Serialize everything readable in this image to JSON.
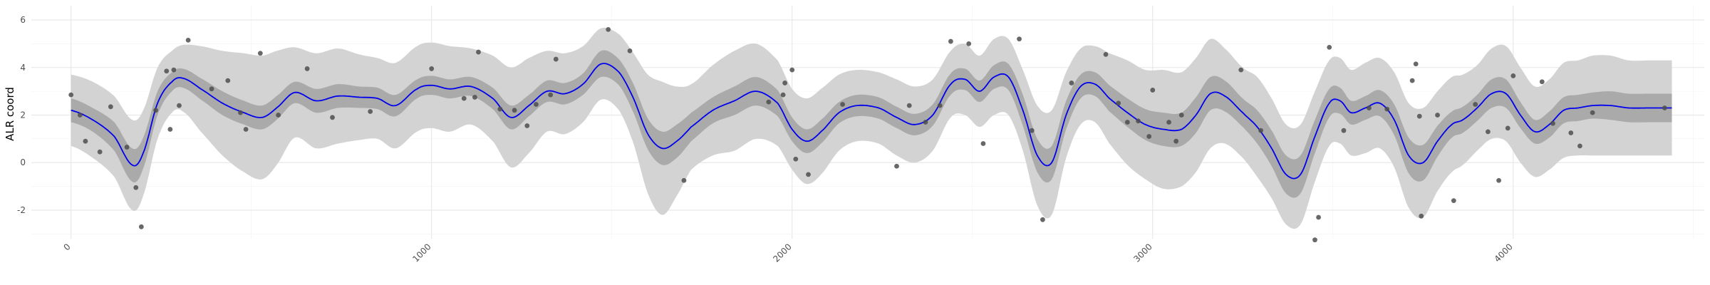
{
  "chart_data": {
    "type": "line",
    "title": "",
    "xlabel": "",
    "ylabel": "ALR coord",
    "xlim": [
      -110,
      4530
    ],
    "ylim": [
      -3.2,
      6.6
    ],
    "x_ticks": [
      0,
      1000,
      2000,
      3000,
      4000
    ],
    "x_tick_labels": [
      "0",
      "1000",
      "2000",
      "3000",
      "4000"
    ],
    "y_ticks": [
      -2,
      0,
      2,
      4,
      6
    ],
    "y_tick_labels": [
      "-2",
      "0",
      "2",
      "4",
      "6"
    ],
    "grid": true,
    "legend": "none",
    "colors": {
      "mean_line": "#0000ee",
      "inner_band": "#aaaaaa",
      "outer_band": "#d3d3d3",
      "points": "#4d4d4d",
      "grid_major": "#e6e6e6",
      "grid_minor": "#f2f2f2"
    },
    "mean_curve": {
      "x": [
        0,
        60,
        120,
        170,
        200,
        240,
        280,
        310,
        360,
        420,
        480,
        530,
        570,
        620,
        680,
        740,
        800,
        850,
        900,
        960,
        1000,
        1050,
        1110,
        1170,
        1220,
        1270,
        1320,
        1370,
        1420,
        1470,
        1520,
        1560,
        1600,
        1640,
        1680,
        1720,
        1780,
        1840,
        1900,
        1960,
        2000,
        2040,
        2080,
        2130,
        2180,
        2240,
        2290,
        2340,
        2390,
        2440,
        2480,
        2520,
        2560,
        2600,
        2640,
        2680,
        2720,
        2760,
        2800,
        2840,
        2880,
        2930,
        2980,
        3030,
        3080,
        3120,
        3160,
        3200,
        3250,
        3290,
        3330,
        3370,
        3410,
        3450,
        3490,
        3520,
        3550,
        3590,
        3630,
        3670,
        3710,
        3750,
        3790,
        3830,
        3860,
        3900,
        3940,
        3980,
        4020,
        4060,
        4100,
        4140,
        4180,
        4220,
        4270,
        4320,
        4380,
        4440
      ],
      "y": [
        2.2,
        1.8,
        1.1,
        -0.1,
        0.4,
        2.5,
        3.4,
        3.55,
        3.1,
        2.5,
        2.1,
        1.9,
        2.3,
        2.95,
        2.6,
        2.8,
        2.75,
        2.7,
        2.4,
        3.1,
        3.25,
        3.1,
        3.2,
        2.7,
        1.9,
        2.4,
        3.0,
        2.9,
        3.3,
        4.15,
        3.8,
        2.7,
        1.2,
        0.6,
        0.9,
        1.5,
        2.2,
        2.6,
        3.0,
        2.5,
        1.4,
        0.9,
        1.3,
        2.1,
        2.4,
        2.3,
        1.9,
        1.6,
        2.0,
        3.3,
        3.5,
        3.0,
        3.6,
        3.6,
        2.2,
        0.3,
        0.0,
        2.0,
        3.2,
        3.3,
        2.7,
        2.1,
        1.6,
        1.4,
        1.4,
        2.0,
        2.9,
        2.8,
        2.1,
        1.5,
        0.6,
        -0.5,
        -0.5,
        1.1,
        2.5,
        2.6,
        2.1,
        2.3,
        2.5,
        1.8,
        0.3,
        0.0,
        0.9,
        1.6,
        1.8,
        2.3,
        2.9,
        2.9,
        2.0,
        1.3,
        1.6,
        2.2,
        2.3,
        2.4,
        2.4,
        2.3,
        2.3,
        2.3
      ]
    },
    "inner_band_halfwidth": [
      0.5,
      0.5,
      0.6,
      0.7,
      0.65,
      0.5,
      0.4,
      0.4,
      0.45,
      0.5,
      0.5,
      0.5,
      0.5,
      0.45,
      0.5,
      0.5,
      0.45,
      0.45,
      0.45,
      0.4,
      0.4,
      0.4,
      0.4,
      0.45,
      0.5,
      0.45,
      0.45,
      0.45,
      0.45,
      0.55,
      0.55,
      0.6,
      0.65,
      0.7,
      0.7,
      0.6,
      0.55,
      0.6,
      0.6,
      0.55,
      0.5,
      0.5,
      0.5,
      0.45,
      0.45,
      0.45,
      0.45,
      0.45,
      0.45,
      0.45,
      0.45,
      0.45,
      0.5,
      0.55,
      0.65,
      0.7,
      0.7,
      0.6,
      0.5,
      0.5,
      0.55,
      0.6,
      0.65,
      0.7,
      0.7,
      0.75,
      0.7,
      0.65,
      0.6,
      0.7,
      0.75,
      0.8,
      0.8,
      0.7,
      0.6,
      0.55,
      0.5,
      0.5,
      0.55,
      0.65,
      0.75,
      0.75,
      0.65,
      0.55,
      0.55,
      0.55,
      0.6,
      0.6,
      0.55,
      0.5,
      0.55,
      0.55,
      0.55,
      0.55,
      0.6,
      0.6,
      0.6,
      0.6
    ],
    "outer_band_halfwidth": [
      1.5,
      1.6,
      1.7,
      1.9,
      1.8,
      1.5,
      1.3,
      1.4,
      1.8,
      2.2,
      2.5,
      2.6,
      2.4,
      1.9,
      2.0,
      2.0,
      1.8,
      1.7,
      1.8,
      1.8,
      1.8,
      1.8,
      1.6,
      1.8,
      2.1,
      2.0,
      1.7,
      1.7,
      1.6,
      1.5,
      1.6,
      1.9,
      2.5,
      2.8,
      2.3,
      1.8,
      1.9,
      2.1,
      2.0,
      1.8,
      1.7,
      1.8,
      1.8,
      1.6,
      1.5,
      1.5,
      1.6,
      1.6,
      1.5,
      1.4,
      1.5,
      1.5,
      1.6,
      1.6,
      1.7,
      2.1,
      2.2,
      1.8,
      1.6,
      1.6,
      1.9,
      2.2,
      2.3,
      2.5,
      2.4,
      2.4,
      2.3,
      2.0,
      1.9,
      2.1,
      2.1,
      2.1,
      2.1,
      1.9,
      1.8,
      1.8,
      1.8,
      1.9,
      1.9,
      2.0,
      2.2,
      2.3,
      2.1,
      2.0,
      1.9,
      1.8,
      1.9,
      2.0,
      2.0,
      1.9,
      1.9,
      2.0,
      2.0,
      2.1,
      2.1,
      2.0,
      2.0,
      2.0
    ],
    "points": [
      [
        0,
        2.85
      ],
      [
        25,
        2.0
      ],
      [
        40,
        0.9
      ],
      [
        80,
        0.45
      ],
      [
        110,
        2.35
      ],
      [
        155,
        0.65
      ],
      [
        180,
        -1.05
      ],
      [
        195,
        -2.7
      ],
      [
        235,
        2.2
      ],
      [
        265,
        3.85
      ],
      [
        275,
        1.4
      ],
      [
        285,
        3.9
      ],
      [
        300,
        2.4
      ],
      [
        325,
        5.15
      ],
      [
        390,
        3.1
      ],
      [
        435,
        3.45
      ],
      [
        470,
        2.1
      ],
      [
        485,
        1.4
      ],
      [
        525,
        4.6
      ],
      [
        575,
        2.0
      ],
      [
        655,
        3.95
      ],
      [
        725,
        1.9
      ],
      [
        830,
        2.15
      ],
      [
        1000,
        3.95
      ],
      [
        1090,
        2.7
      ],
      [
        1120,
        2.75
      ],
      [
        1130,
        4.65
      ],
      [
        1190,
        2.25
      ],
      [
        1230,
        2.2
      ],
      [
        1265,
        1.55
      ],
      [
        1290,
        2.45
      ],
      [
        1330,
        2.85
      ],
      [
        1345,
        4.35
      ],
      [
        1490,
        5.6
      ],
      [
        1550,
        4.7
      ],
      [
        1700,
        -0.75
      ],
      [
        1935,
        2.55
      ],
      [
        1975,
        2.85
      ],
      [
        1980,
        3.35
      ],
      [
        2000,
        3.9
      ],
      [
        2010,
        0.15
      ],
      [
        2045,
        -0.5
      ],
      [
        2140,
        2.45
      ],
      [
        2290,
        -0.15
      ],
      [
        2325,
        2.4
      ],
      [
        2370,
        1.7
      ],
      [
        2410,
        2.4
      ],
      [
        2440,
        5.1
      ],
      [
        2490,
        5.0
      ],
      [
        2530,
        0.8
      ],
      [
        2630,
        5.2
      ],
      [
        2665,
        1.35
      ],
      [
        2695,
        -2.4
      ],
      [
        2775,
        3.35
      ],
      [
        2870,
        4.55
      ],
      [
        2905,
        2.5
      ],
      [
        2930,
        1.7
      ],
      [
        2960,
        1.75
      ],
      [
        2990,
        1.1
      ],
      [
        3000,
        3.05
      ],
      [
        3045,
        1.7
      ],
      [
        3065,
        0.9
      ],
      [
        3080,
        2.0
      ],
      [
        3245,
        3.9
      ],
      [
        3300,
        1.35
      ],
      [
        3450,
        -3.25
      ],
      [
        3460,
        -2.3
      ],
      [
        3490,
        4.85
      ],
      [
        3530,
        1.35
      ],
      [
        3600,
        2.3
      ],
      [
        3650,
        2.25
      ],
      [
        3720,
        3.45
      ],
      [
        3730,
        4.15
      ],
      [
        3740,
        1.95
      ],
      [
        3745,
        -2.25
      ],
      [
        3790,
        2.0
      ],
      [
        3835,
        -1.6
      ],
      [
        3895,
        2.45
      ],
      [
        3930,
        1.3
      ],
      [
        3960,
        -0.75
      ],
      [
        3985,
        1.45
      ],
      [
        4000,
        3.65
      ],
      [
        4080,
        3.4
      ],
      [
        4110,
        1.65
      ],
      [
        4160,
        1.25
      ],
      [
        4185,
        0.7
      ],
      [
        4220,
        2.1
      ],
      [
        4420,
        2.3
      ]
    ]
  }
}
